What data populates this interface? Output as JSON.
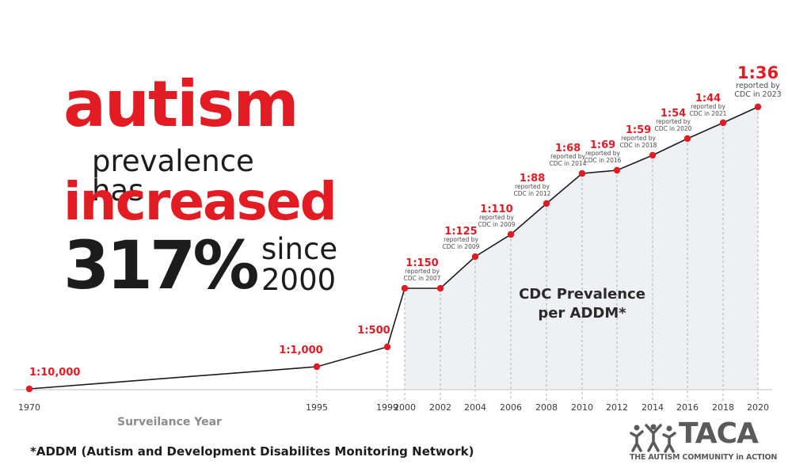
{
  "headline": {
    "line1": "autism",
    "line2": "prevalence has",
    "line3": "increased",
    "percent": "317%",
    "since_line1": "since",
    "since_line2": "2000"
  },
  "colors": {
    "accent": "#e31b23",
    "text": "#1c1c1c",
    "muted": "#8c8c8c",
    "area": "#eef0f3"
  },
  "chart_data": {
    "type": "line",
    "annotation_line1": "CDC Prevalence",
    "annotation_line2": "per ADDM*",
    "xlabel": "Surveilance Year",
    "x_ticks": [
      "1970",
      "1995",
      "1999",
      "2000",
      "2002",
      "2004",
      "2006",
      "2008",
      "2010",
      "2012",
      "2014",
      "2016",
      "2018",
      "2020"
    ],
    "points": [
      {
        "x": "1970",
        "label": "1:10,000",
        "note": ""
      },
      {
        "x": "1995",
        "label": "1:1,000",
        "note": ""
      },
      {
        "x": "1999",
        "label": "1:500",
        "note": ""
      },
      {
        "x": "2000",
        "label": "1:150",
        "note": "reported by CDC in 2007"
      },
      {
        "x": "2002",
        "label": "",
        "note": ""
      },
      {
        "x": "2004",
        "label": "1:125",
        "note": "reported by CDC in 2009"
      },
      {
        "x": "2006",
        "label": "1:110",
        "note": "reported by CDC in 2009"
      },
      {
        "x": "2008",
        "label": "1:88",
        "note": "reported by CDC in 2012"
      },
      {
        "x": "2010",
        "label": "1:68",
        "note": "reported by CDC in 2014"
      },
      {
        "x": "2012",
        "label": "1:69",
        "note": "reported by CDC in 2016"
      },
      {
        "x": "2014",
        "label": "1:59",
        "note": "reported by CDC in 2018"
      },
      {
        "x": "2016",
        "label": "1:54",
        "note": "reported by CDC in 2020"
      },
      {
        "x": "2018",
        "label": "1:44",
        "note": "reported by CDC in 2021"
      },
      {
        "x": "2020",
        "label": "1:36",
        "note": "reported by CDC in 2023"
      }
    ]
  },
  "footnote": "*ADDM (Autism and Development Disabilites Monitoring Network)",
  "logo": {
    "name": "TACA",
    "tagline": "THE AUTISM COMMUNITY in ACTION"
  }
}
